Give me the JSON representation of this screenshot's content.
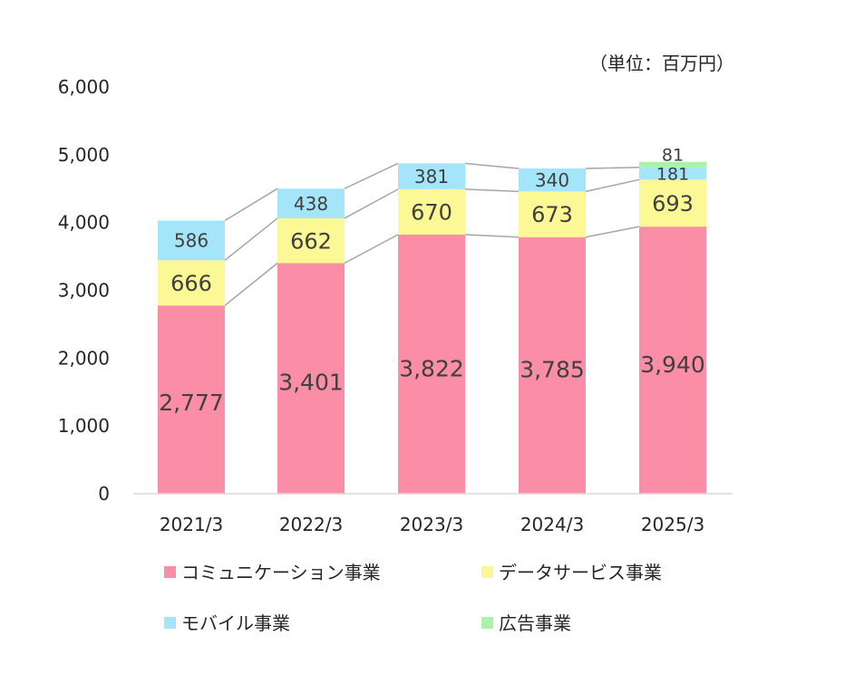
{
  "chart_data": {
    "type": "bar",
    "stacked": true,
    "unit_label": "（単位：百万円）",
    "categories": [
      "2021/3",
      "2022/3",
      "2023/3",
      "2024/3",
      "2025/3"
    ],
    "ylim": [
      0,
      6000
    ],
    "yticks": [
      "0",
      "1,000",
      "2,000",
      "3,000",
      "4,000",
      "5,000",
      "6,000"
    ],
    "series": [
      {
        "name": "コミュニケーション事業",
        "color": "#fb8ea6",
        "values": [
          2777,
          3401,
          3822,
          3785,
          3940
        ],
        "labels": [
          "2,777",
          "3,401",
          "3,822",
          "3,785",
          "3,940"
        ]
      },
      {
        "name": "データサービス事業",
        "color": "#fcf896",
        "values": [
          666,
          662,
          670,
          673,
          693
        ],
        "labels": [
          "666",
          "662",
          "670",
          "673",
          "693"
        ]
      },
      {
        "name": "モバイル事業",
        "color": "#a5e5f9",
        "values": [
          586,
          438,
          381,
          340,
          181
        ],
        "labels": [
          "586",
          "438",
          "381",
          "340",
          "181"
        ]
      },
      {
        "name": "広告事業",
        "color": "#a8f3a8",
        "values": [
          0,
          0,
          0,
          0,
          81
        ],
        "labels": [
          "",
          "",
          "",
          "",
          "81"
        ]
      }
    ],
    "gridlines": false,
    "series_connector_lines": true,
    "legend_position": "bottom"
  }
}
